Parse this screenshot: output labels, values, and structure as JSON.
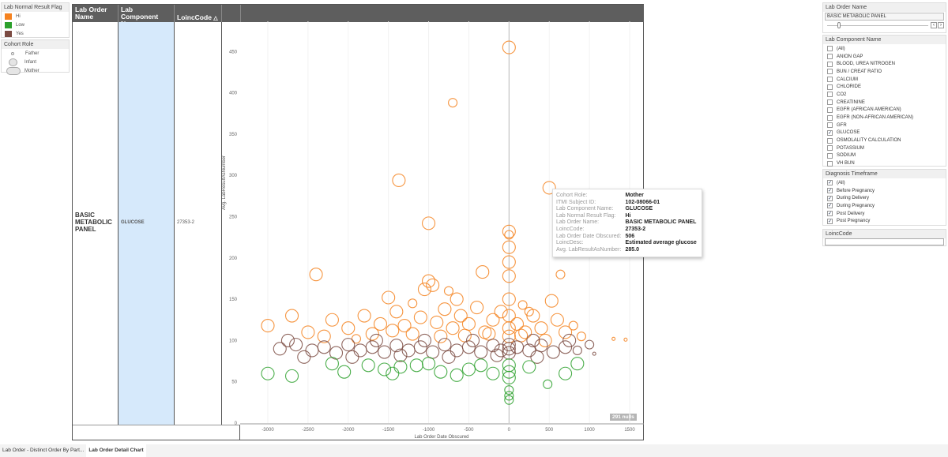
{
  "legend_flag": {
    "title": "Lab Normal Result Flag",
    "items": [
      {
        "label": "Hi",
        "color": "#f5821f"
      },
      {
        "label": "Low",
        "color": "#2ca02c"
      },
      {
        "label": "Yes",
        "color": "#7b4b42"
      }
    ]
  },
  "legend_role": {
    "title": "Cohort Role",
    "items": [
      {
        "label": "Father"
      },
      {
        "label": "Infant"
      },
      {
        "label": "Mother"
      }
    ]
  },
  "table": {
    "headers": [
      "Lab Order Name",
      "Lab Component Name",
      "LoincCode"
    ],
    "row": {
      "order": "BASIC METABOLIC PANEL",
      "component": "GLUCOSE",
      "loinc": "27353-2"
    }
  },
  "nulls_badge": "291 nulls",
  "filters": {
    "order_name": {
      "title": "Lab Order Name",
      "value": "BASIC METABOLIC PANEL"
    },
    "component": {
      "title": "Lab Component Name",
      "items": [
        {
          "label": "(All)",
          "checked": false
        },
        {
          "label": "ANION GAP",
          "checked": false
        },
        {
          "label": "BLOOD, UREA NITROGEN",
          "checked": false
        },
        {
          "label": "BUN / CREAT RATIO",
          "checked": false
        },
        {
          "label": "CALCIUM",
          "checked": false
        },
        {
          "label": "CHLORIDE",
          "checked": false
        },
        {
          "label": "CO2",
          "checked": false
        },
        {
          "label": "CREATININE",
          "checked": false
        },
        {
          "label": "EGFR (AFRICAN AMERICAN)",
          "checked": false
        },
        {
          "label": "EGFR (NON-AFRICAN AMERICAN)",
          "checked": false
        },
        {
          "label": "GFR",
          "checked": false
        },
        {
          "label": "GLUCOSE",
          "checked": true
        },
        {
          "label": "OSMOLALITY CALCULATION",
          "checked": false
        },
        {
          "label": "POTASSIUM",
          "checked": false
        },
        {
          "label": "SODIUM",
          "checked": false
        },
        {
          "label": "VH BUN",
          "checked": false
        }
      ]
    },
    "timeframe": {
      "title": "Diagnosis Timeframe",
      "items": [
        {
          "label": "(All)",
          "checked": true
        },
        {
          "label": "Before Pregnancy",
          "checked": true
        },
        {
          "label": "During Delivery",
          "checked": true
        },
        {
          "label": "During Pregnancy",
          "checked": true
        },
        {
          "label": "Post Delivery",
          "checked": true
        },
        {
          "label": "Post Pregnancy",
          "checked": true
        }
      ]
    },
    "loinc": {
      "title": "LoincCode",
      "value": ""
    }
  },
  "tooltip": [
    [
      "Cohort Role:",
      "Mother"
    ],
    [
      "ITMI Subject ID:",
      "102-08066-01"
    ],
    [
      "Lab Component Name:",
      "GLUCOSE"
    ],
    [
      "Lab Normal Result Flag:",
      "Hi"
    ],
    [
      "Lab Order Name:",
      "BASIC METABOLIC PANEL"
    ],
    [
      "LoincCode:",
      "27353-2"
    ],
    [
      "Lab Order Date Obscured:",
      "506"
    ],
    [
      "LoincDesc:",
      "Estimated average glucose"
    ],
    [
      "Avg. LabResultAsNumber:",
      "285.0"
    ]
  ],
  "tabs": [
    {
      "label": "Lab Order - Distinct Order By Part...",
      "active": false
    },
    {
      "label": "Lab Order Detail Chart",
      "active": true
    }
  ],
  "chart_data": {
    "type": "scatter",
    "xlabel": "Lab Order Date Obscured",
    "ylabel": "Avg. LabResultAsNumber",
    "xlim": [
      -3350,
      1650
    ],
    "ylim": [
      0,
      480
    ],
    "xticks": [
      -3000,
      -2500,
      -2000,
      -1500,
      -1000,
      -500,
      0,
      500,
      1000,
      1500
    ],
    "yticks": [
      0,
      50,
      100,
      150,
      200,
      250,
      300,
      350,
      400,
      450
    ],
    "color_by": "Lab Normal Result Flag",
    "size_by": "Cohort Role",
    "points": [
      [
        0,
        455,
        "Hi",
        "Mother"
      ],
      [
        -700,
        388,
        "Hi",
        "Infant"
      ],
      [
        -1370,
        294,
        "Hi",
        "Mother"
      ],
      [
        500,
        285,
        "Hi",
        "Mother"
      ],
      [
        -1000,
        242,
        "Hi",
        "Mother"
      ],
      [
        0,
        232,
        "Hi",
        "Mother"
      ],
      [
        0,
        228,
        "Hi",
        "Infant"
      ],
      [
        0,
        213,
        "Hi",
        "Mother"
      ],
      [
        0,
        195,
        "Hi",
        "Mother"
      ],
      [
        0,
        178,
        "Hi",
        "Mother"
      ],
      [
        -2400,
        180,
        "Hi",
        "Mother"
      ],
      [
        -330,
        183,
        "Hi",
        "Mother"
      ],
      [
        640,
        180,
        "Hi",
        "Infant"
      ],
      [
        -1000,
        172,
        "Hi",
        "Mother"
      ],
      [
        -950,
        167,
        "Hi",
        "Mother"
      ],
      [
        -1050,
        162,
        "Hi",
        "Mother"
      ],
      [
        -1500,
        152,
        "Hi",
        "Mother"
      ],
      [
        -1200,
        145,
        "Hi",
        "Infant"
      ],
      [
        530,
        148,
        "Hi",
        "Mother"
      ],
      [
        170,
        143,
        "Hi",
        "Infant"
      ],
      [
        -3000,
        118,
        "Hi",
        "Mother"
      ],
      [
        -2700,
        130,
        "Hi",
        "Mother"
      ],
      [
        -2500,
        110,
        "Hi",
        "Mother"
      ],
      [
        -2200,
        125,
        "Hi",
        "Mother"
      ],
      [
        -2000,
        115,
        "Hi",
        "Mother"
      ],
      [
        -1800,
        130,
        "Hi",
        "Mother"
      ],
      [
        -1600,
        120,
        "Hi",
        "Mother"
      ],
      [
        -1400,
        135,
        "Hi",
        "Mother"
      ],
      [
        -1300,
        118,
        "Hi",
        "Mother"
      ],
      [
        -1100,
        128,
        "Hi",
        "Mother"
      ],
      [
        -900,
        122,
        "Hi",
        "Mother"
      ],
      [
        -800,
        138,
        "Hi",
        "Mother"
      ],
      [
        -700,
        115,
        "Hi",
        "Mother"
      ],
      [
        -600,
        130,
        "Hi",
        "Mother"
      ],
      [
        -500,
        120,
        "Hi",
        "Mother"
      ],
      [
        -400,
        140,
        "Hi",
        "Mother"
      ],
      [
        -300,
        110,
        "Hi",
        "Mother"
      ],
      [
        -200,
        125,
        "Hi",
        "Mother"
      ],
      [
        -100,
        135,
        "Hi",
        "Mother"
      ],
      [
        0,
        150,
        "Hi",
        "Mother"
      ],
      [
        0,
        130,
        "Hi",
        "Mother"
      ],
      [
        0,
        115,
        "Hi",
        "Mother"
      ],
      [
        0,
        105,
        "Hi",
        "Mother"
      ],
      [
        100,
        120,
        "Hi",
        "Mother"
      ],
      [
        200,
        110,
        "Hi",
        "Mother"
      ],
      [
        300,
        130,
        "Hi",
        "Mother"
      ],
      [
        400,
        115,
        "Hi",
        "Mother"
      ],
      [
        600,
        125,
        "Hi",
        "Mother"
      ],
      [
        700,
        110,
        "Hi",
        "Mother"
      ],
      [
        800,
        118,
        "Hi",
        "Infant"
      ],
      [
        900,
        105,
        "Hi",
        "Infant"
      ],
      [
        1300,
        102,
        "Hi",
        "Father"
      ],
      [
        1450,
        101,
        "Hi",
        "Father"
      ],
      [
        -1700,
        108,
        "Hi",
        "Mother"
      ],
      [
        -1200,
        108,
        "Hi",
        "Mother"
      ],
      [
        -850,
        105,
        "Hi",
        "Mother"
      ],
      [
        -550,
        106,
        "Hi",
        "Mother"
      ],
      [
        -250,
        108,
        "Hi",
        "Mother"
      ],
      [
        150,
        106,
        "Hi",
        "Mother"
      ],
      [
        -2300,
        105,
        "Hi",
        "Mother"
      ],
      [
        -1900,
        102,
        "Hi",
        "Infant"
      ],
      [
        -1450,
        112,
        "Hi",
        "Mother"
      ],
      [
        -650,
        150,
        "Hi",
        "Mother"
      ],
      [
        -750,
        160,
        "Hi",
        "Infant"
      ],
      [
        250,
        135,
        "Hi",
        "Infant"
      ],
      [
        450,
        100,
        "Hi",
        "Mother"
      ],
      [
        -2850,
        90,
        "Yes",
        "Mother"
      ],
      [
        -2650,
        95,
        "Yes",
        "Mother"
      ],
      [
        -2450,
        88,
        "Yes",
        "Mother"
      ],
      [
        -2300,
        92,
        "Yes",
        "Mother"
      ],
      [
        -2150,
        85,
        "Yes",
        "Mother"
      ],
      [
        -2000,
        95,
        "Yes",
        "Mother"
      ],
      [
        -1850,
        88,
        "Yes",
        "Mother"
      ],
      [
        -1700,
        92,
        "Yes",
        "Mother"
      ],
      [
        -1550,
        86,
        "Yes",
        "Mother"
      ],
      [
        -1400,
        94,
        "Yes",
        "Mother"
      ],
      [
        -1250,
        88,
        "Yes",
        "Mother"
      ],
      [
        -1100,
        92,
        "Yes",
        "Mother"
      ],
      [
        -950,
        86,
        "Yes",
        "Mother"
      ],
      [
        -800,
        95,
        "Yes",
        "Mother"
      ],
      [
        -650,
        88,
        "Yes",
        "Mother"
      ],
      [
        -500,
        92,
        "Yes",
        "Mother"
      ],
      [
        -350,
        86,
        "Yes",
        "Mother"
      ],
      [
        -200,
        94,
        "Yes",
        "Mother"
      ],
      [
        -100,
        88,
        "Yes",
        "Mother"
      ],
      [
        0,
        90,
        "Yes",
        "Mother"
      ],
      [
        0,
        95,
        "Yes",
        "Mother"
      ],
      [
        0,
        85,
        "Yes",
        "Mother"
      ],
      [
        100,
        92,
        "Yes",
        "Mother"
      ],
      [
        250,
        88,
        "Yes",
        "Mother"
      ],
      [
        400,
        94,
        "Yes",
        "Mother"
      ],
      [
        550,
        86,
        "Yes",
        "Mother"
      ],
      [
        700,
        92,
        "Yes",
        "Mother"
      ],
      [
        850,
        88,
        "Yes",
        "Infant"
      ],
      [
        1000,
        95,
        "Yes",
        "Infant"
      ],
      [
        1060,
        84,
        "Yes",
        "Father"
      ],
      [
        -2550,
        80,
        "Yes",
        "Mother"
      ],
      [
        -1950,
        80,
        "Yes",
        "Mother"
      ],
      [
        -1350,
        82,
        "Yes",
        "Mother"
      ],
      [
        -750,
        80,
        "Yes",
        "Mother"
      ],
      [
        -150,
        82,
        "Yes",
        "Mother"
      ],
      [
        350,
        80,
        "Yes",
        "Mother"
      ],
      [
        -2750,
        100,
        "Yes",
        "Mother"
      ],
      [
        -1650,
        100,
        "Yes",
        "Mother"
      ],
      [
        -1050,
        100,
        "Yes",
        "Mother"
      ],
      [
        -450,
        100,
        "Yes",
        "Mother"
      ],
      [
        300,
        100,
        "Yes",
        "Mother"
      ],
      [
        750,
        100,
        "Yes",
        "Mother"
      ],
      [
        -3000,
        60,
        "Low",
        "Mother"
      ],
      [
        -2700,
        57,
        "Low",
        "Mother"
      ],
      [
        -2050,
        62,
        "Low",
        "Mother"
      ],
      [
        -1550,
        65,
        "Low",
        "Mother"
      ],
      [
        -1450,
        60,
        "Low",
        "Mother"
      ],
      [
        -1350,
        68,
        "Low",
        "Mother"
      ],
      [
        -1150,
        70,
        "Low",
        "Mother"
      ],
      [
        -850,
        62,
        "Low",
        "Mother"
      ],
      [
        -650,
        58,
        "Low",
        "Mother"
      ],
      [
        -500,
        65,
        "Low",
        "Mother"
      ],
      [
        -350,
        70,
        "Low",
        "Mother"
      ],
      [
        -200,
        60,
        "Low",
        "Mother"
      ],
      [
        0,
        70,
        "Low",
        "Mother"
      ],
      [
        0,
        62,
        "Low",
        "Mother"
      ],
      [
        0,
        55,
        "Low",
        "Mother"
      ],
      [
        0,
        40,
        "Low",
        "Infant"
      ],
      [
        0,
        33,
        "Low",
        "Infant"
      ],
      [
        0,
        28,
        "Low",
        "Infant"
      ],
      [
        250,
        68,
        "Low",
        "Mother"
      ],
      [
        480,
        47,
        "Low",
        "Infant"
      ],
      [
        700,
        60,
        "Low",
        "Mother"
      ],
      [
        850,
        72,
        "Low",
        "Mother"
      ],
      [
        -1000,
        72,
        "Low",
        "Mother"
      ],
      [
        -2200,
        72,
        "Low",
        "Mother"
      ],
      [
        -1750,
        70,
        "Low",
        "Mother"
      ]
    ]
  }
}
